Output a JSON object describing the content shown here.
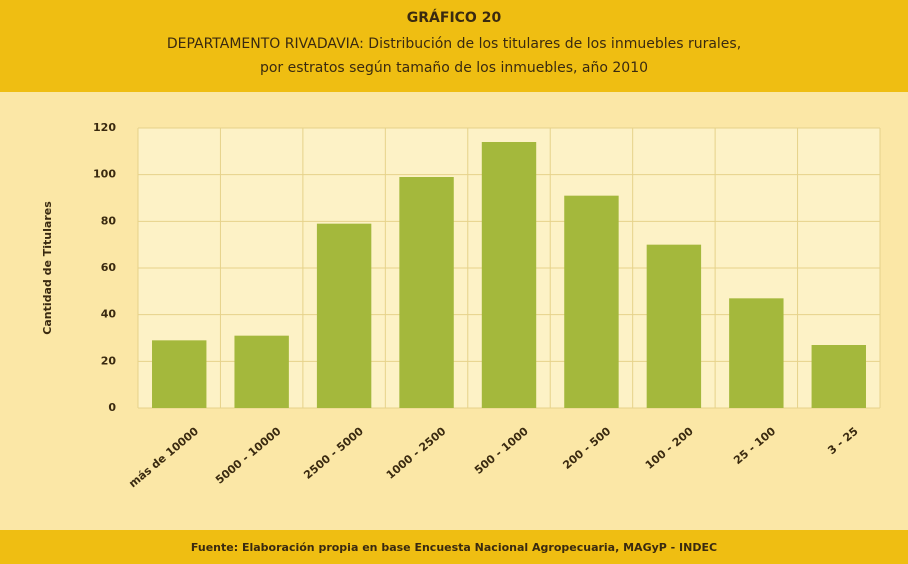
{
  "chart_data": {
    "type": "bar",
    "title": "GRÁFICO 20",
    "subtitle": [
      "DEPARTAMENTO RIVADAVIA: Distribución de los titulares de los inmuebles rurales,",
      "por estratos según tamaño de los inmuebles, año 2010"
    ],
    "y_label": "Cantidad de Titulares",
    "source": "Fuente: Elaboración propia en base Encuesta Nacional Agropecuaria, MAGyP - INDEC",
    "categories": [
      "más de 10000",
      "5000 - 10000",
      "2500 - 5000",
      "1000 - 2500",
      "500 - 1000",
      "200 - 500",
      "100 - 200",
      "25 - 100",
      "3 - 25"
    ],
    "values": [
      29,
      31,
      79,
      99,
      114,
      91,
      70,
      47,
      27
    ],
    "color": "#a4b83c",
    "ylim": [
      0,
      120
    ],
    "yticks": [
      0,
      20,
      40,
      60,
      80,
      100,
      120
    ],
    "grid": true
  }
}
